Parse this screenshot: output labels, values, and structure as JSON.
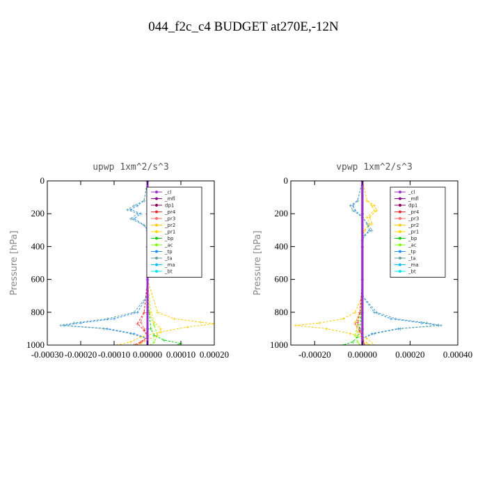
{
  "title": "044_f2c_c4  BUDGET at270E,-12N",
  "chart_data": [
    {
      "type": "line",
      "title": "upwp   1xm^2/s^3",
      "ylabel": "Pressure [hPa]",
      "xlim": [
        -0.0003,
        0.0002
      ],
      "ylim": [
        1000,
        0
      ],
      "xticks": [
        -0.0003,
        -0.0002,
        -0.0001,
        0.0,
        0.0001,
        0.0002
      ],
      "xtick_labels": [
        "-0.00030",
        "-0.00020",
        "-0.00010",
        "0.00000",
        "0.00010",
        "0.00020"
      ],
      "yticks": [
        0,
        200,
        400,
        600,
        800,
        1000
      ],
      "ytick_labels": [
        "0",
        "200",
        "400",
        "600",
        "800",
        "1000"
      ],
      "legend": "top-right",
      "series": [
        {
          "name": "_bt",
          "color": "#00e5ee",
          "x": [
            0.0,
            0.0,
            0.0,
            0.0,
            0.0,
            0.0,
            0.0
          ],
          "y": [
            0,
            200,
            400,
            600,
            800,
            900,
            1000
          ]
        },
        {
          "name": "_ma",
          "color": "#00bfff",
          "x": [
            0.0,
            0.0,
            0.0,
            0.0,
            0.0,
            0.0,
            0.0
          ],
          "y": [
            0,
            200,
            400,
            600,
            800,
            900,
            1000
          ]
        },
        {
          "name": "_bp",
          "color": "#00cd00",
          "x": [
            0.0,
            0.0,
            0.0,
            0.0,
            5e-06,
            1e-05,
            2e-05,
            5e-05,
            0.0001,
            9e-05
          ],
          "y": [
            0,
            200,
            400,
            600,
            800,
            900,
            940,
            970,
            990,
            1000
          ]
        },
        {
          "name": "_ac",
          "color": "#7cfc00",
          "x": [
            0.0,
            0.0,
            0.0,
            0.0,
            5e-06,
            2e-05,
            3e-05,
            2e-05,
            1e-05
          ],
          "y": [
            0,
            200,
            400,
            600,
            800,
            880,
            940,
            980,
            1000
          ]
        },
        {
          "name": "_pr1",
          "color": "#ffd700",
          "x": [
            0.0,
            1e-05,
            2e-05,
            1e-05,
            0.0,
            0.0,
            1e-05,
            2e-05,
            4e-05,
            3e-05,
            0.0,
            -2e-05,
            -4e-05
          ],
          "y": [
            0,
            120,
            180,
            240,
            300,
            600,
            800,
            860,
            900,
            940,
            970,
            990,
            1000
          ]
        },
        {
          "name": "_pr2",
          "color": "#ffcc00",
          "x": [
            0.0,
            1e-05,
            2e-05,
            2e-05,
            1e-05,
            0.0,
            0.0,
            3e-05,
            8e-05,
            0.00016,
            0.0002,
            0.00012,
            4e-05,
            -2e-05,
            -5e-05,
            -9e-05
          ],
          "y": [
            0,
            120,
            160,
            200,
            250,
            300,
            600,
            800,
            840,
            860,
            870,
            890,
            920,
            950,
            980,
            1000
          ]
        },
        {
          "name": "_pr3",
          "color": "#ff6a6a",
          "x": [
            0.0,
            0.0,
            0.0,
            0.0,
            -1e-05,
            -2e-05,
            -1e-05,
            0.0,
            -1e-05,
            -3e-05
          ],
          "y": [
            0,
            200,
            400,
            600,
            800,
            860,
            900,
            940,
            970,
            1000
          ]
        },
        {
          "name": "_pr4",
          "color": "#ee2c2c",
          "x": [
            0.0,
            0.0,
            0.0,
            0.0,
            -1e-05,
            -3e-05,
            -1e-05,
            0.0,
            -2e-05,
            -4e-05
          ],
          "y": [
            0,
            200,
            400,
            600,
            800,
            870,
            910,
            950,
            980,
            1000
          ]
        },
        {
          "name": "_tp",
          "color": "#1e90ff",
          "x": [
            0.0,
            -1e-05,
            -3e-05,
            -5e-05,
            -2e-05,
            -4e-05,
            -1e-05,
            0.0,
            0.0,
            -3e-05,
            -0.0001,
            -0.0002,
            -0.00025,
            -0.00012,
            -4e-05,
            0.0,
            0.0
          ],
          "y": [
            0,
            120,
            150,
            175,
            200,
            230,
            270,
            300,
            700,
            800,
            840,
            865,
            880,
            900,
            930,
            960,
            1000
          ]
        },
        {
          "name": "_ta",
          "color": "#5f9ea0",
          "x": [
            0.0,
            -1e-05,
            -4e-05,
            -6e-05,
            -3e-05,
            -5e-05,
            -1e-05,
            0.0,
            0.0,
            -4e-05,
            -0.00012,
            -0.00022,
            -0.00026,
            -0.00013,
            -5e-05,
            0.0,
            0.0
          ],
          "y": [
            0,
            120,
            150,
            175,
            200,
            230,
            270,
            300,
            700,
            800,
            840,
            865,
            880,
            900,
            930,
            960,
            1000
          ]
        },
        {
          "name": "_dp1",
          "color": "#8b0057",
          "x": [
            0.0,
            0.0,
            0.0,
            0.0,
            0.0,
            0.0,
            0.0
          ],
          "y": [
            0,
            200,
            400,
            600,
            800,
            900,
            1000
          ]
        },
        {
          "name": "_mfl",
          "color": "#8b008b",
          "x": [
            0.0,
            0.0,
            0.0,
            0.0,
            0.0,
            0.0,
            0.0
          ],
          "y": [
            0,
            200,
            400,
            600,
            800,
            900,
            1000
          ]
        },
        {
          "name": "_cl",
          "color": "#9932cc",
          "x": [
            0.0,
            0.0,
            0.0,
            0.0,
            0.0,
            0.0,
            0.0
          ],
          "y": [
            0,
            200,
            400,
            600,
            800,
            900,
            1000
          ]
        }
      ]
    },
    {
      "type": "line",
      "title": "vpwp   1xm^2/s^3",
      "ylabel": "Pressure [hPa]",
      "xlim": [
        -0.0003,
        0.0004
      ],
      "ylim": [
        1000,
        0
      ],
      "xticks": [
        -0.0002,
        0.0,
        0.0002,
        0.0004
      ],
      "xtick_labels": [
        "-0.00020",
        "0.00000",
        "0.00020",
        "0.00040"
      ],
      "yticks": [
        0,
        200,
        400,
        600,
        800,
        1000
      ],
      "ytick_labels": [
        "0",
        "200",
        "400",
        "600",
        "800",
        "1000"
      ],
      "legend": "top-right",
      "series": [
        {
          "name": "_bt",
          "color": "#00e5ee",
          "x": [
            0.0,
            0.0,
            0.0,
            0.0,
            0.0,
            0.0,
            0.0
          ],
          "y": [
            0,
            200,
            400,
            600,
            800,
            900,
            1000
          ]
        },
        {
          "name": "_ma",
          "color": "#00bfff",
          "x": [
            0.0,
            0.0,
            0.0,
            0.0,
            0.0,
            0.0,
            0.0
          ],
          "y": [
            0,
            200,
            400,
            600,
            800,
            900,
            1000
          ]
        },
        {
          "name": "_bp",
          "color": "#00cd00",
          "x": [
            0.0,
            0.0,
            0.0,
            0.0,
            -5e-06,
            -1e-05,
            -2e-05,
            -4e-05,
            -8e-05
          ],
          "y": [
            0,
            200,
            400,
            600,
            800,
            900,
            950,
            980,
            1000
          ]
        },
        {
          "name": "_ac",
          "color": "#7cfc00",
          "x": [
            0.0,
            0.0,
            0.0,
            0.0,
            -5e-06,
            -2e-05,
            -3e-05,
            -2e-05,
            -1e-05
          ],
          "y": [
            0,
            200,
            400,
            600,
            800,
            880,
            940,
            980,
            1000
          ]
        },
        {
          "name": "_pr1",
          "color": "#ffd700",
          "x": [
            0.0,
            2e-05,
            4e-05,
            5e-05,
            2e-05,
            3e-05,
            1e-05,
            0.0,
            0.0,
            -1e-05,
            -3e-05,
            -2e-05,
            0.0,
            2e-05,
            3e-05
          ],
          "y": [
            0,
            120,
            150,
            180,
            220,
            260,
            300,
            330,
            700,
            800,
            860,
            920,
            960,
            990,
            1000
          ]
        },
        {
          "name": "_pr2",
          "color": "#ffcc00",
          "x": [
            0.0,
            2e-05,
            5e-05,
            6e-05,
            3e-05,
            4e-05,
            1e-05,
            0.0,
            0.0,
            -3e-05,
            -8e-05,
            -0.00018,
            -0.00028,
            -0.00015,
            -5e-05,
            2e-05,
            5e-05
          ],
          "y": [
            0,
            120,
            150,
            180,
            220,
            260,
            300,
            330,
            700,
            800,
            840,
            865,
            880,
            900,
            930,
            960,
            1000
          ]
        },
        {
          "name": "_pr3",
          "color": "#ff6a6a",
          "x": [
            0.0,
            0.0,
            0.0,
            0.0,
            -1e-05,
            -3e-05,
            -1e-05,
            0.0,
            1e-05
          ],
          "y": [
            0,
            200,
            400,
            600,
            800,
            870,
            920,
            960,
            1000
          ]
        },
        {
          "name": "_pr4",
          "color": "#ee2c2c",
          "x": [
            0.0,
            0.0,
            0.0,
            0.0,
            -1e-05,
            -2e-05,
            -1e-05,
            0.0,
            1e-05
          ],
          "y": [
            0,
            200,
            400,
            600,
            800,
            860,
            910,
            950,
            1000
          ]
        },
        {
          "name": "_tp",
          "color": "#1e90ff",
          "x": [
            0.0,
            -2e-05,
            -4e-05,
            -3e-05,
            0.0,
            2e-05,
            3e-05,
            1e-05,
            0.0,
            0.0,
            5e-05,
            0.00012,
            0.00025,
            0.00032,
            0.00015,
            4e-05,
            0.0,
            0.0
          ],
          "y": [
            0,
            120,
            150,
            180,
            220,
            260,
            300,
            330,
            360,
            700,
            800,
            840,
            865,
            880,
            900,
            930,
            960,
            1000
          ]
        },
        {
          "name": "_ta",
          "color": "#5f9ea0",
          "x": [
            0.0,
            -2e-05,
            -5e-05,
            -4e-05,
            0.0,
            2e-05,
            4e-05,
            1e-05,
            0.0,
            0.0,
            6e-05,
            0.00014,
            0.00027,
            0.00033,
            0.00016,
            5e-05,
            0.0,
            0.0
          ],
          "y": [
            0,
            120,
            150,
            180,
            220,
            260,
            300,
            330,
            360,
            700,
            800,
            840,
            865,
            880,
            900,
            930,
            960,
            1000
          ]
        },
        {
          "name": "_dp1",
          "color": "#8b0057",
          "x": [
            0.0,
            0.0,
            0.0,
            0.0,
            0.0,
            0.0,
            0.0
          ],
          "y": [
            0,
            200,
            400,
            600,
            800,
            900,
            1000
          ]
        },
        {
          "name": "_mfl",
          "color": "#8b008b",
          "x": [
            0.0,
            0.0,
            0.0,
            0.0,
            0.0,
            0.0,
            0.0
          ],
          "y": [
            0,
            200,
            400,
            600,
            800,
            900,
            1000
          ]
        },
        {
          "name": "_cl",
          "color": "#9932cc",
          "x": [
            0.0,
            0.0,
            0.0,
            0.0,
            0.0,
            0.0,
            0.0
          ],
          "y": [
            0,
            200,
            400,
            600,
            800,
            900,
            1000
          ]
        }
      ],
      "legend_order": [
        "_cl",
        "_mfl",
        "dp1",
        "_pr4",
        "_pr3",
        "_pr2",
        "_pr1",
        "_bp",
        "_ac",
        "_tp",
        "_ta",
        "_ma",
        "_bt"
      ]
    }
  ],
  "legend_labels": [
    "_cl",
    "_mfl",
    "dp1",
    "_pr4",
    "_pr3",
    "_pr2",
    "_pr1",
    "_bp",
    "_ac",
    "_tp",
    "_ta",
    "_ma",
    "_bt"
  ],
  "legend_colors": [
    "#9932cc",
    "#8b008b",
    "#8b0057",
    "#ee2c2c",
    "#ff6a6a",
    "#ffcc00",
    "#ffd700",
    "#00cd00",
    "#7cfc00",
    "#1e90ff",
    "#5f9ea0",
    "#00bfff",
    "#00e5ee"
  ]
}
